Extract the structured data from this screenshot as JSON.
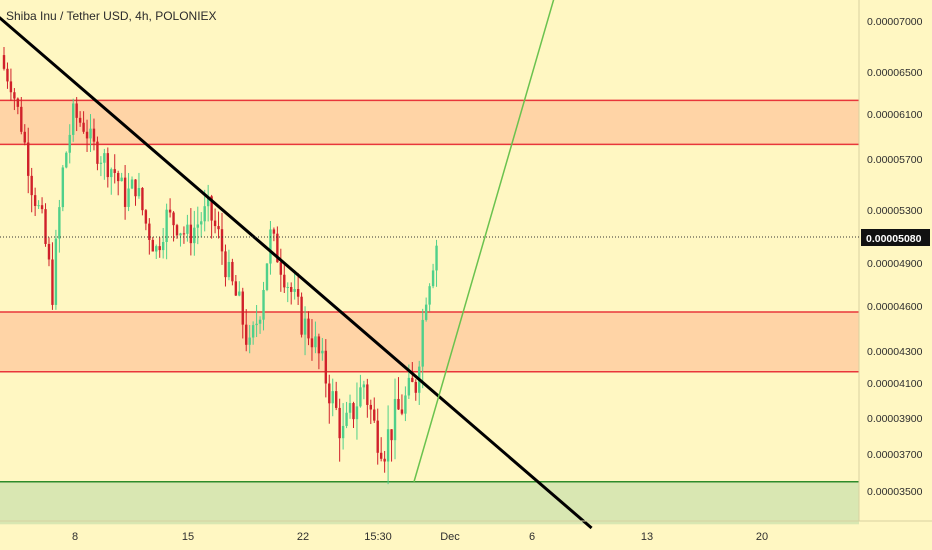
{
  "header": {
    "title": "Shiba Inu / Tether USD, 4h, POLONIEX"
  },
  "colors": {
    "background": "#fff7c2",
    "up": "#4fd08a",
    "down": "#d0202a",
    "zone_red_fill": "#ffd4a6",
    "zone_red_line": "#e8363a",
    "zone_green_fill": "#d9e7b2",
    "zone_green_line": "#2e8b2a",
    "trendline": "#000000",
    "support_line": "#6ac24e"
  },
  "chart_data": {
    "type": "candlestick",
    "title": "Shiba Inu / Tether USD, 4h, POLONIEX",
    "y_ticks": [
      "0.00007000",
      "0.00006500",
      "0.00006100",
      "0.00005700",
      "0.00005300",
      "0.00004900",
      "0.00004600",
      "0.00004300",
      "0.00004100",
      "0.00003900",
      "0.00003700",
      "0.00003500"
    ],
    "x_ticks": [
      "8",
      "15",
      "22",
      "15:30",
      "Dec",
      "6",
      "13",
      "20"
    ],
    "current_price": "0.00005080",
    "zones": [
      {
        "color": "red",
        "from": 5.83e-05,
        "to": 6.23e-05
      },
      {
        "color": "red",
        "from": 4.17e-05,
        "to": 4.56e-05
      },
      {
        "color": "green",
        "from": 3.32e-05,
        "to": 3.55e-05
      }
    ],
    "lines": [
      {
        "name": "trendline",
        "from": [
          "2021-11-01",
          7.35e-05
        ],
        "to": [
          "2021-12-10",
          3.3e-05
        ]
      },
      {
        "name": "support",
        "from": [
          "2021-11-29",
          3.55e-05
        ],
        "to": [
          "2021-12-08",
          7.4e-05
        ]
      }
    ],
    "closes_approx": [
      6.6e-05,
      6.4e-05,
      6e-05,
      5.5e-05,
      5.2e-05,
      4.7e-05,
      5.6e-05,
      6.1e-05,
      6e-05,
      5.8e-05,
      5.7e-05,
      5.6e-05,
      5.4e-05,
      5.5e-05,
      5.2e-05,
      5e-05,
      5.25e-05,
      5.2e-05,
      5.1e-05,
      5.2e-05,
      5.3e-05,
      5.1e-05,
      4.8e-05,
      4.6e-05,
      4.3e-05,
      4.6e-05,
      5.1e-05,
      4.9e-05,
      4.7e-05,
      4.5e-05,
      4.4e-05,
      4.2e-05,
      4e-05,
      3.8e-05,
      3.95e-05,
      4.1e-05,
      3.85e-05,
      3.75e-05,
      3.9e-05,
      4e-05,
      4.1e-05,
      4.7e-05,
      5.05e-05
    ]
  }
}
